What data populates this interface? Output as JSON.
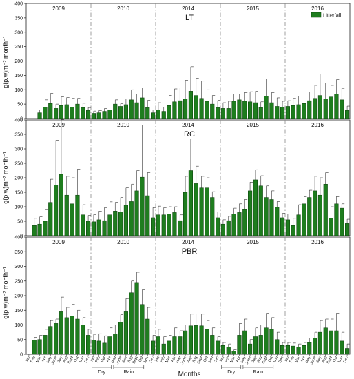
{
  "figure": {
    "ylabel": "g(p.w)m⁻² month⁻¹",
    "xlabel": "Months",
    "legend_label": "Litterfall",
    "years": [
      "2009",
      "2010",
      "2014",
      "2015",
      "2016"
    ],
    "months": [
      "Jan",
      "Feb",
      "Mar",
      "Apr",
      "May",
      "June",
      "July",
      "Aug",
      "Sept",
      "Oct",
      "Nov",
      "Dec"
    ],
    "season_labels": [
      "Dry",
      "Rain"
    ],
    "bar_color": "#1e7d1e"
  },
  "chart_data": [
    {
      "type": "bar",
      "title": "LT",
      "ylim": [
        0,
        400
      ],
      "yticks": [
        0,
        50,
        100,
        150,
        200,
        250,
        300,
        350,
        400
      ],
      "values": [
        0,
        0,
        20,
        40,
        52,
        35,
        45,
        48,
        40,
        50,
        38,
        28,
        18,
        20,
        25,
        30,
        50,
        42,
        48,
        65,
        55,
        72,
        38,
        20,
        30,
        25,
        45,
        58,
        62,
        68,
        95,
        80,
        70,
        60,
        50,
        38,
        35,
        35,
        60,
        65,
        60,
        58,
        55,
        38,
        78,
        55,
        42,
        40,
        42,
        45,
        48,
        52,
        62,
        70,
        80,
        68,
        75,
        85,
        65,
        28
      ],
      "errors": [
        0,
        0,
        10,
        25,
        35,
        15,
        30,
        25,
        30,
        20,
        15,
        10,
        8,
        8,
        10,
        10,
        15,
        10,
        20,
        35,
        30,
        35,
        25,
        10,
        25,
        15,
        35,
        45,
        45,
        65,
        85,
        60,
        60,
        40,
        30,
        25,
        20,
        25,
        25,
        20,
        30,
        35,
        40,
        20,
        60,
        35,
        30,
        20,
        20,
        25,
        30,
        40,
        30,
        45,
        75,
        55,
        40,
        50,
        40,
        15
      ]
    },
    {
      "type": "bar",
      "title": "RC",
      "ylim": [
        0,
        400
      ],
      "yticks": [
        0,
        50,
        100,
        150,
        200,
        250,
        300,
        350,
        400
      ],
      "values": [
        0,
        35,
        40,
        50,
        115,
        175,
        212,
        140,
        110,
        140,
        72,
        50,
        48,
        55,
        52,
        72,
        85,
        82,
        105,
        118,
        155,
        202,
        138,
        62,
        72,
        72,
        75,
        80,
        52,
        150,
        225,
        180,
        165,
        165,
        132,
        62,
        40,
        52,
        75,
        80,
        90,
        155,
        193,
        172,
        132,
        125,
        98,
        62,
        55,
        35,
        72,
        110,
        132,
        155,
        140,
        178,
        60,
        110,
        95,
        42
      ],
      "errors": [
        0,
        25,
        25,
        40,
        80,
        155,
        190,
        65,
        90,
        90,
        35,
        20,
        25,
        30,
        45,
        45,
        30,
        50,
        60,
        60,
        70,
        180,
        80,
        35,
        30,
        25,
        25,
        20,
        20,
        55,
        110,
        60,
        40,
        35,
        20,
        20,
        15,
        15,
        20,
        30,
        35,
        30,
        35,
        35,
        40,
        30,
        20,
        15,
        20,
        25,
        35,
        25,
        25,
        50,
        60,
        40,
        40,
        25,
        15,
        15
      ]
    },
    {
      "type": "bar",
      "title": "PBR",
      "ylim": [
        0,
        400
      ],
      "yticks": [
        0,
        50,
        100,
        150,
        200,
        250,
        300,
        350,
        400
      ],
      "values": [
        0,
        48,
        50,
        65,
        95,
        105,
        145,
        125,
        130,
        120,
        100,
        65,
        48,
        45,
        38,
        60,
        70,
        110,
        145,
        210,
        245,
        170,
        120,
        45,
        60,
        35,
        45,
        60,
        60,
        80,
        97,
        98,
        97,
        85,
        65,
        45,
        30,
        25,
        10,
        65,
        80,
        35,
        60,
        65,
        90,
        85,
        50,
        30,
        30,
        28,
        25,
        30,
        40,
        55,
        75,
        90,
        80,
        80,
        45,
        20
      ],
      "errors": [
        0,
        10,
        15,
        20,
        20,
        15,
        50,
        35,
        40,
        30,
        25,
        20,
        20,
        25,
        25,
        30,
        30,
        25,
        45,
        40,
        35,
        50,
        40,
        20,
        25,
        25,
        20,
        30,
        20,
        20,
        40,
        40,
        40,
        30,
        25,
        15,
        10,
        10,
        5,
        40,
        40,
        15,
        30,
        35,
        50,
        40,
        25,
        10,
        10,
        10,
        10,
        10,
        15,
        20,
        40,
        30,
        40,
        60,
        30,
        15
      ]
    }
  ]
}
